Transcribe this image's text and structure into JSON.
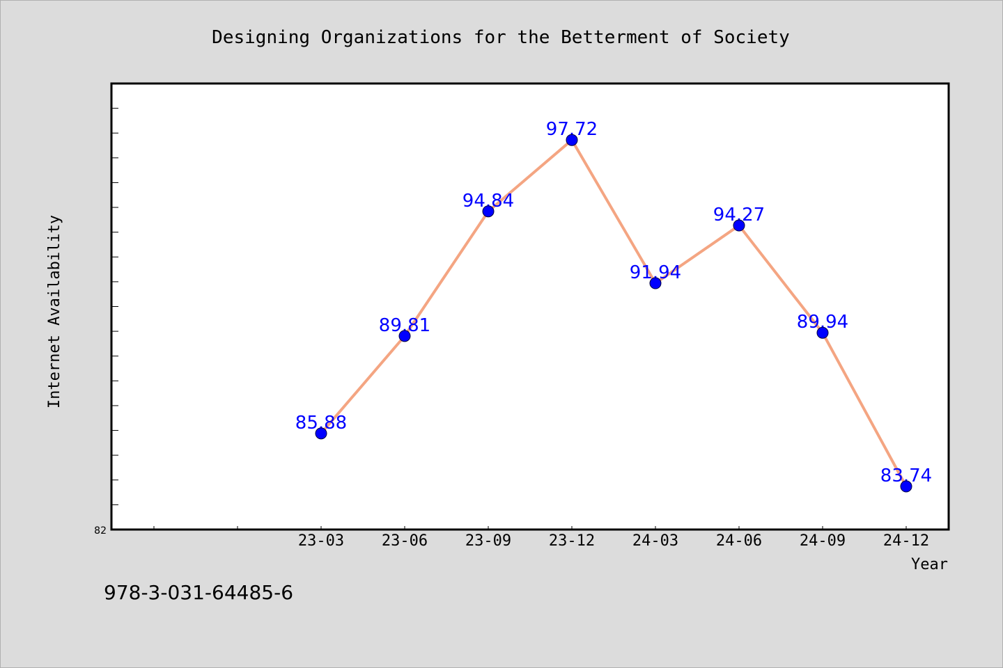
{
  "chart_data": {
    "type": "line",
    "title": "Designing Organizations for the Betterment of Society",
    "xlabel": "Year",
    "ylabel": "Internet Availability",
    "categories": [
      "23-03",
      "23-06",
      "23-09",
      "23-12",
      "24-03",
      "24-06",
      "24-09",
      "24-12"
    ],
    "series": [
      {
        "values": [
          85.88,
          89.81,
          94.84,
          97.72,
          91.94,
          94.27,
          89.94,
          83.74
        ]
      }
    ],
    "data_labels": [
      "85.88",
      "89.81",
      "94.84",
      "97.72",
      "91.94",
      "94.27",
      "89.94",
      "83.74"
    ],
    "ylim": [
      82,
      100
    ],
    "y_tick_labels": [
      "82"
    ],
    "grid": false,
    "legend": "none",
    "colors": {
      "line": "#f4a582",
      "marker": "#0000ff",
      "data_label": "#0000ff",
      "plot_background": "#ffffff",
      "figure_background": "#dcdcdc"
    }
  },
  "footer": {
    "isbn": "978-3-031-64485-6"
  }
}
